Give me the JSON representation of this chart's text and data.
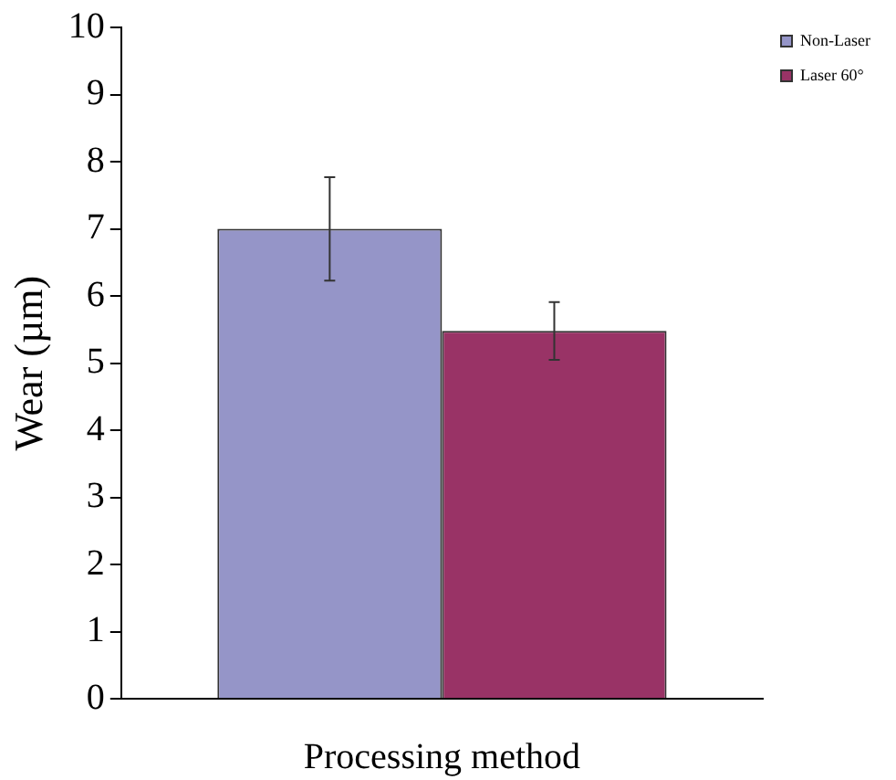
{
  "chart_data": {
    "type": "bar",
    "xlabel": "Processing method",
    "ylabel": "Wear (µm)",
    "categories": [
      null
    ],
    "series": [
      {
        "name": "Non-Laser",
        "color": "#9595c8",
        "values": [
          7.0
        ],
        "errors": [
          0.77
        ]
      },
      {
        "name": "Laser 60°",
        "color": "#993366",
        "values": [
          5.48
        ],
        "errors": [
          0.43
        ]
      }
    ],
    "ylim": [
      0,
      10
    ],
    "yticks": [
      0,
      1,
      2,
      3,
      4,
      5,
      6,
      7,
      8,
      9,
      10
    ],
    "grid": false,
    "legend": "top right"
  }
}
